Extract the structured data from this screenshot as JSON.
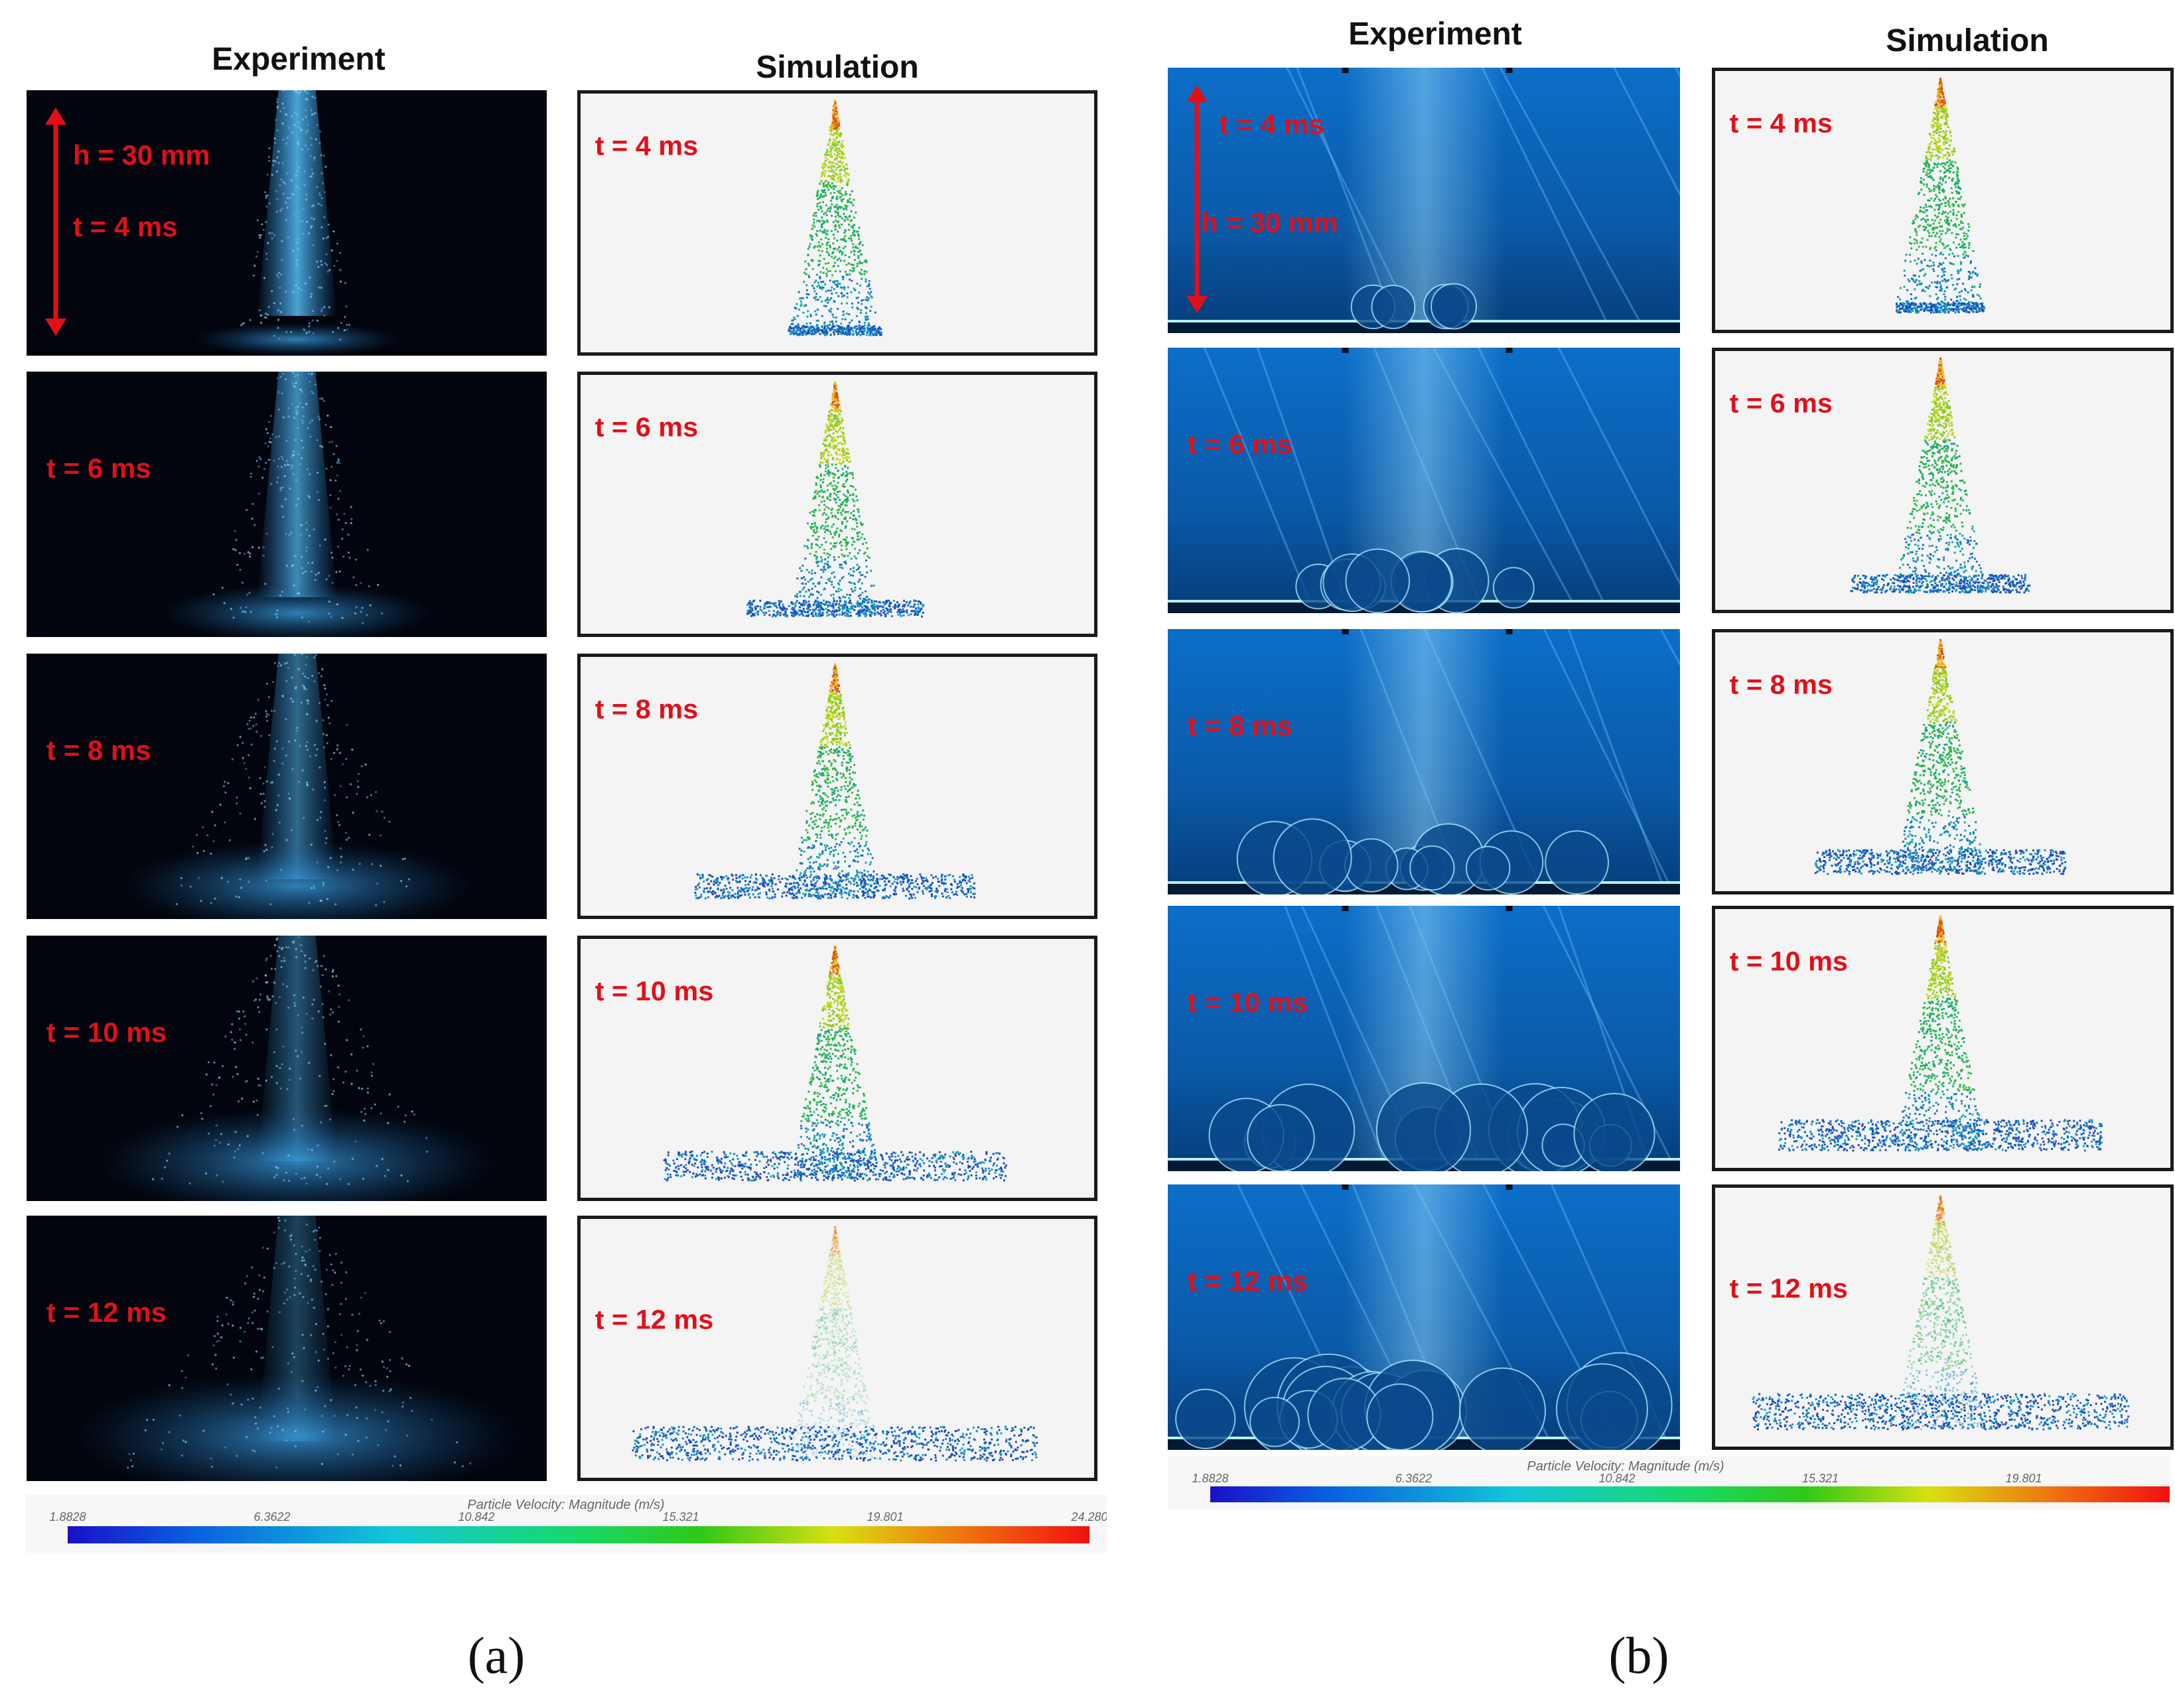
{
  "panel_a": {
    "experiment_header": "Experiment",
    "simulation_header": "Simulation",
    "height_label": "h = 30 mm",
    "rows": [
      {
        "exp_time": "t = 4 ms",
        "sim_time": "t = 4 ms",
        "spread": 0.1
      },
      {
        "exp_time": "t = 6 ms",
        "sim_time": "t = 6 ms",
        "spread": 0.3
      },
      {
        "exp_time": "t = 8 ms",
        "sim_time": "t = 8 ms",
        "spread": 0.55
      },
      {
        "exp_time": "t = 10 ms",
        "sim_time": "t = 10 ms",
        "spread": 0.7
      },
      {
        "exp_time": "t = 12 ms",
        "sim_time": "t = 12 ms",
        "spread": 0.85
      }
    ],
    "colorbar": {
      "title": "Particle Velocity: Magnitude (m/s)",
      "ticks": [
        "1.8828",
        "6.3622",
        "10.842",
        "15.321",
        "19.801",
        "24.280"
      ]
    },
    "caption": "(a)"
  },
  "panel_b": {
    "experiment_header": "Experiment",
    "simulation_header": "Simulation",
    "height_label": "h = 30 mm",
    "rows": [
      {
        "exp_time": "t = 4 ms",
        "sim_time": "t = 4 ms",
        "spread": 0.1
      },
      {
        "exp_time": "t = 6 ms",
        "sim_time": "t = 6 ms",
        "spread": 0.35
      },
      {
        "exp_time": "t = 8 ms",
        "sim_time": "t = 8 ms",
        "spread": 0.55
      },
      {
        "exp_time": "t = 10 ms",
        "sim_time": "t = 10 ms",
        "spread": 0.75
      },
      {
        "exp_time": "t = 12 ms",
        "sim_time": "t = 12 ms",
        "spread": 0.9
      }
    ],
    "colorbar": {
      "title": "Particle Velocity: Magnitude (m/s)",
      "ticks": [
        "1.8828",
        "6.3622",
        "10.842",
        "15.321",
        "19.801"
      ]
    },
    "caption": "(b)"
  },
  "colors": {
    "label_red": "#e0101a",
    "exp_a_background": "#02050d",
    "exp_b_background": "#0a58a8",
    "sim_background": "#f4f4f4"
  }
}
